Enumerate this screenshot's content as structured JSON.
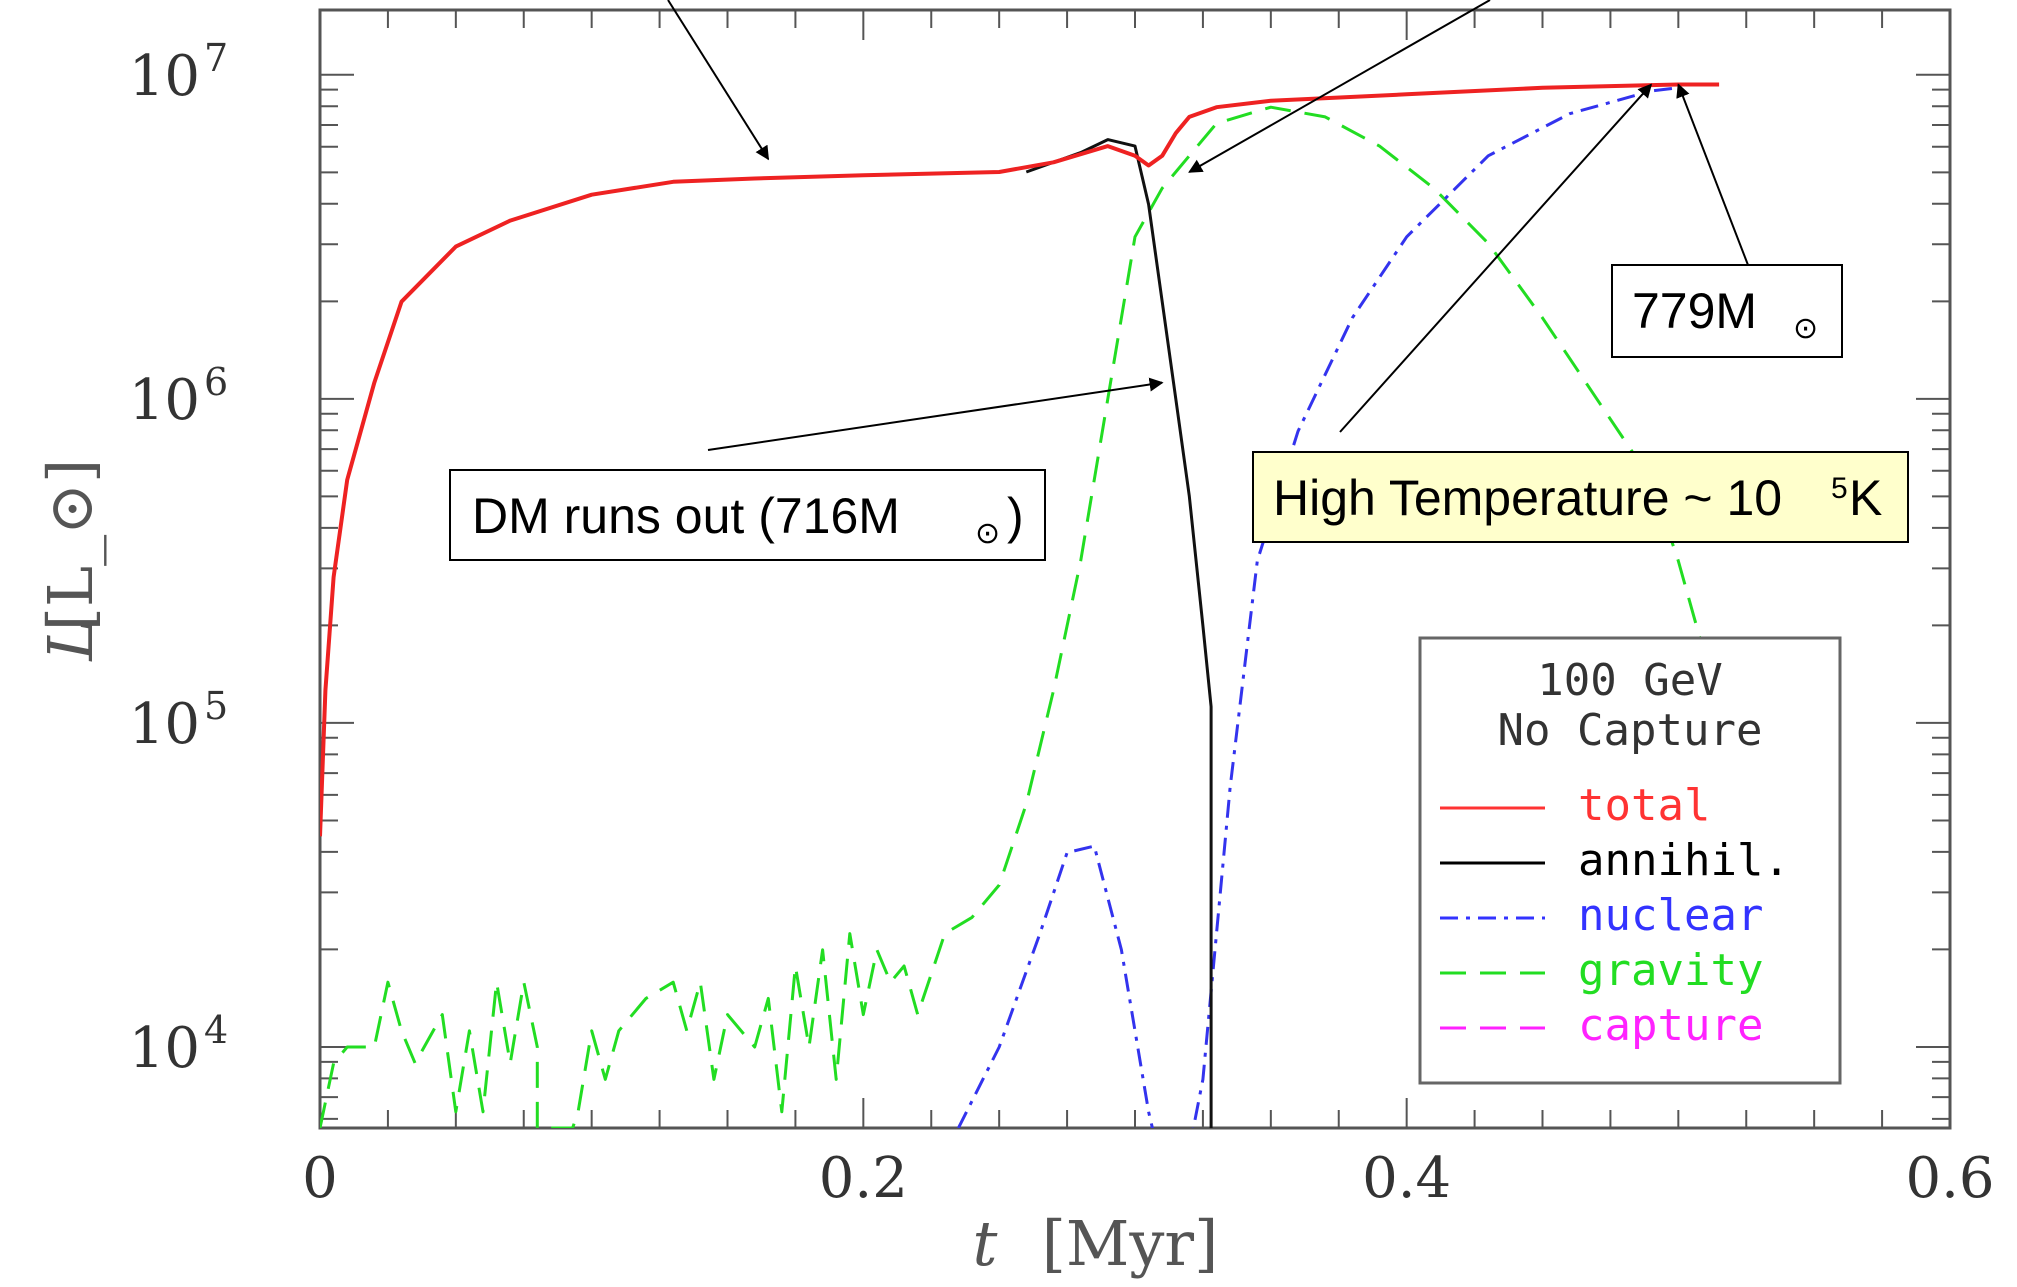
{
  "chart_data": {
    "type": "line",
    "xlabel": "t",
    "xlabel_unit": "[Myr]",
    "ylabel": "L",
    "ylabel_unit": "[L_⊙]",
    "xlim": [
      0,
      0.6
    ],
    "ylim_log10": [
      3.75,
      7.2
    ],
    "y_scale": "log",
    "x_ticks": [
      {
        "value": 0,
        "label": "0"
      },
      {
        "value": 0.2,
        "label": "0.2"
      },
      {
        "value": 0.4,
        "label": "0.4"
      },
      {
        "value": 0.6,
        "label": "0.6"
      }
    ],
    "y_ticks": [
      {
        "exp": 4,
        "label": "10",
        "sup": "4"
      },
      {
        "exp": 5,
        "label": "10",
        "sup": "5"
      },
      {
        "exp": 6,
        "label": "10",
        "sup": "6"
      },
      {
        "exp": 7,
        "label": "10",
        "sup": "7"
      }
    ],
    "legend": {
      "position": "bottom-right",
      "title_lines": [
        "100 GeV",
        "No Capture"
      ],
      "entries": [
        {
          "label": "total",
          "color": "#ff3333",
          "dash": "solid"
        },
        {
          "label": "annihil.",
          "color": "#000000",
          "dash": "solid"
        },
        {
          "label": "nuclear",
          "color": "#3333ff",
          "dash": "dashdot"
        },
        {
          "label": "gravity",
          "color": "#22dd22",
          "dash": "dashed"
        },
        {
          "label": "capture",
          "color": "#ff22ff",
          "dash": "dashed"
        }
      ]
    },
    "series": [
      {
        "name": "total",
        "color": "#ee2222",
        "dash": "solid",
        "x": [
          0,
          0.002,
          0.005,
          0.01,
          0.02,
          0.03,
          0.05,
          0.07,
          0.1,
          0.13,
          0.16,
          0.2,
          0.25,
          0.27,
          0.29,
          0.3,
          0.305,
          0.31,
          0.315,
          0.32,
          0.33,
          0.35,
          0.4,
          0.45,
          0.5,
          0.515
        ],
        "log10_y": [
          4.65,
          5.1,
          5.45,
          5.75,
          6.05,
          6.3,
          6.47,
          6.55,
          6.63,
          6.67,
          6.68,
          6.69,
          6.7,
          6.73,
          6.78,
          6.75,
          6.72,
          6.75,
          6.82,
          6.87,
          6.9,
          6.92,
          6.94,
          6.96,
          6.97,
          6.97
        ]
      },
      {
        "name": "annihil.",
        "color": "#111111",
        "dash": "solid",
        "x": [
          0.26,
          0.28,
          0.29,
          0.3,
          0.305,
          0.31,
          0.315,
          0.32,
          0.325,
          0.328,
          0.328,
          0.328
        ],
        "log10_y": [
          6.7,
          6.76,
          6.8,
          6.78,
          6.6,
          6.3,
          6.0,
          5.7,
          5.3,
          5.05,
          4.2,
          3.75
        ]
      },
      {
        "name": "nuclear",
        "color": "#3333ee",
        "dash": "dashdot",
        "x": [
          0.235,
          0.25,
          0.265,
          0.275,
          0.285,
          0.295,
          0.305,
          0.312,
          0.318,
          0.325,
          0.335,
          0.345,
          0.36,
          0.38,
          0.4,
          0.43,
          0.46,
          0.49,
          0.5
        ],
        "log10_y": [
          3.75,
          4.0,
          4.35,
          4.6,
          4.62,
          4.3,
          3.8,
          3.55,
          3.6,
          3.9,
          4.8,
          5.5,
          5.9,
          6.25,
          6.5,
          6.75,
          6.88,
          6.95,
          6.96
        ]
      },
      {
        "name": "gravity",
        "color": "#22dd22",
        "dash": "dashed",
        "x": [
          0.0,
          0.005,
          0.01,
          0.02,
          0.025,
          0.03,
          0.035,
          0.045,
          0.05,
          0.055,
          0.06,
          0.065,
          0.07,
          0.075,
          0.08,
          0.08,
          0.093,
          0.095,
          0.1,
          0.105,
          0.11,
          0.12,
          0.13,
          0.135,
          0.14,
          0.145,
          0.15,
          0.16,
          0.165,
          0.17,
          0.175,
          0.18,
          0.185,
          0.19,
          0.195,
          0.2,
          0.205,
          0.21,
          0.215,
          0.22,
          0.23,
          0.24,
          0.25,
          0.26,
          0.27,
          0.28,
          0.29,
          0.3,
          0.31,
          0.32,
          0.33,
          0.35,
          0.37,
          0.39,
          0.41,
          0.43,
          0.45,
          0.47,
          0.49,
          0.5,
          0.51
        ],
        "log10_y": [
          3.75,
          3.95,
          4.0,
          4.0,
          4.2,
          4.05,
          3.95,
          4.1,
          3.8,
          4.05,
          3.8,
          4.2,
          3.95,
          4.2,
          4.0,
          3.75,
          3.75,
          3.8,
          4.05,
          3.9,
          4.05,
          4.15,
          4.2,
          4.05,
          4.2,
          3.9,
          4.1,
          4.0,
          4.15,
          3.8,
          4.25,
          4.0,
          4.3,
          3.9,
          4.35,
          4.1,
          4.3,
          4.2,
          4.25,
          4.1,
          4.35,
          4.4,
          4.5,
          4.75,
          5.1,
          5.5,
          6.0,
          6.5,
          6.65,
          6.75,
          6.85,
          6.9,
          6.87,
          6.78,
          6.65,
          6.48,
          6.25,
          6.0,
          5.75,
          5.5,
          5.2
        ]
      }
    ],
    "annotations": [
      {
        "text": "DM runs out (716M",
        "symbol": "⊙",
        "suffix": ")",
        "box": "white",
        "arrow_to": {
          "x": 0.31,
          "log10_y": 6.05
        }
      },
      {
        "text": "779M",
        "symbol": "⊙",
        "suffix": "",
        "box": "white",
        "arrow_to": {
          "x": 0.5,
          "log10_y": 6.97
        }
      },
      {
        "text": "High Temperature ~ 10",
        "sup": "5",
        "suffix": " K",
        "box": "#ffffcc",
        "arrow_to": {
          "x": 0.49,
          "log10_y": 6.97
        }
      }
    ],
    "offscreen_arrows": [
      {
        "target": {
          "x": 0.165,
          "log10_y": 6.74
        }
      },
      {
        "target": {
          "x": 0.32,
          "log10_y": 6.7
        }
      }
    ]
  }
}
